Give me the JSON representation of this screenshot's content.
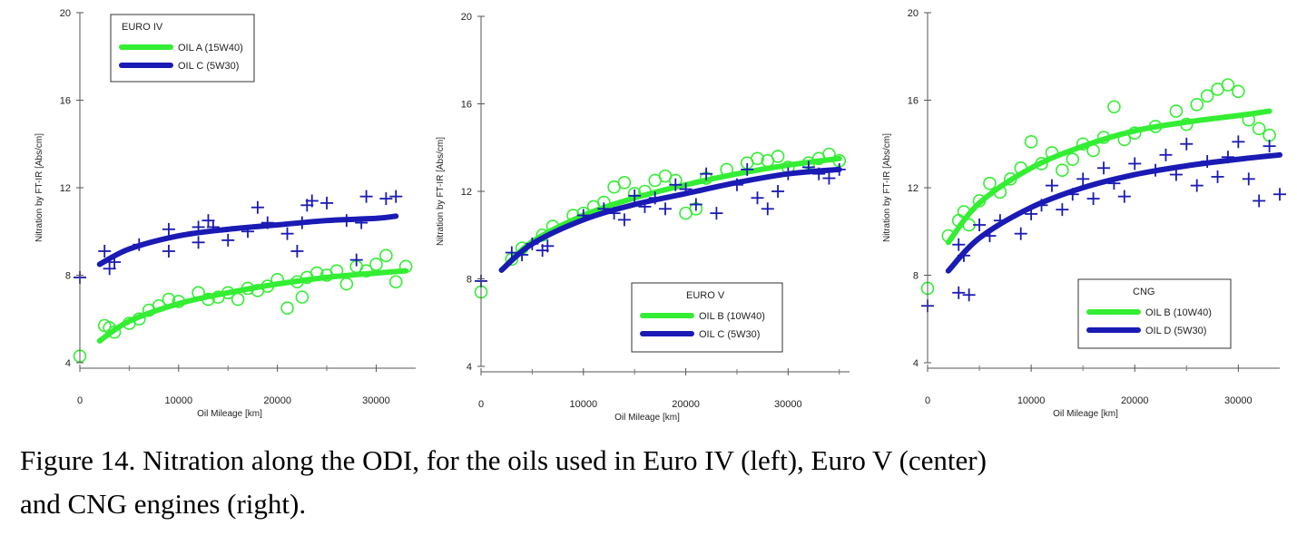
{
  "caption": {
    "line1": "Figure 14. Nitration along the ODI, for the oils used in Euro IV (left), Euro V (center)",
    "line2": "and CNG engines (right)."
  },
  "colors": {
    "green": "#33ee33",
    "blue": "#1a1ab4"
  },
  "chart_data": [
    {
      "type": "scatter",
      "legend_title": "EURO IV",
      "legend_position": "top-left",
      "xlabel": "Oil Mileage [km]",
      "ylabel": "Nitration by FT-IR [Abs/cm]",
      "xlim": [
        0,
        34000
      ],
      "ylim": [
        4,
        20
      ],
      "xticks": [
        0,
        10000,
        20000,
        30000
      ],
      "yticks": [
        4,
        8,
        12,
        16,
        20
      ],
      "series": [
        {
          "name": "OIL A (15W40)",
          "color": "#33ee33",
          "marker": "circle",
          "points": [
            [
              0,
              4.3
            ],
            [
              2500,
              5.7
            ],
            [
              3000,
              5.6
            ],
            [
              3500,
              5.4
            ],
            [
              5000,
              5.8
            ],
            [
              6000,
              6.0
            ],
            [
              7000,
              6.4
            ],
            [
              8000,
              6.6
            ],
            [
              9000,
              6.9
            ],
            [
              10000,
              6.8
            ],
            [
              12000,
              7.2
            ],
            [
              13000,
              6.9
            ],
            [
              14000,
              7.0
            ],
            [
              15000,
              7.2
            ],
            [
              16000,
              6.9
            ],
            [
              17000,
              7.4
            ],
            [
              18000,
              7.3
            ],
            [
              19000,
              7.5
            ],
            [
              20000,
              7.8
            ],
            [
              21000,
              6.5
            ],
            [
              22000,
              7.7
            ],
            [
              22500,
              7.0
            ],
            [
              23000,
              7.9
            ],
            [
              24000,
              8.1
            ],
            [
              25000,
              8.0
            ],
            [
              26000,
              8.2
            ],
            [
              27000,
              7.6
            ],
            [
              28000,
              8.4
            ],
            [
              29000,
              8.2
            ],
            [
              30000,
              8.5
            ],
            [
              31000,
              8.9
            ],
            [
              32000,
              7.7
            ],
            [
              33000,
              8.4
            ]
          ],
          "fit": [
            [
              2000,
              5.0
            ],
            [
              5000,
              5.9
            ],
            [
              10000,
              6.7
            ],
            [
              15000,
              7.2
            ],
            [
              20000,
              7.6
            ],
            [
              25000,
              7.9
            ],
            [
              30000,
              8.1
            ],
            [
              33000,
              8.2
            ]
          ]
        },
        {
          "name": "OIL C (5W30)",
          "color": "#1a1ab4",
          "marker": "plus",
          "points": [
            [
              0,
              7.9
            ],
            [
              2500,
              9.1
            ],
            [
              3000,
              8.3
            ],
            [
              3500,
              8.6
            ],
            [
              6000,
              9.4
            ],
            [
              9000,
              10.1
            ],
            [
              9000,
              9.1
            ],
            [
              12000,
              9.5
            ],
            [
              12000,
              10.2
            ],
            [
              13000,
              10.5
            ],
            [
              13500,
              10.2
            ],
            [
              15000,
              9.6
            ],
            [
              17000,
              10.0
            ],
            [
              18000,
              11.1
            ],
            [
              19000,
              10.4
            ],
            [
              21000,
              9.9
            ],
            [
              22000,
              9.1
            ],
            [
              22500,
              10.4
            ],
            [
              23000,
              11.2
            ],
            [
              23500,
              11.4
            ],
            [
              25000,
              11.3
            ],
            [
              27000,
              10.5
            ],
            [
              28000,
              8.7
            ],
            [
              28500,
              10.4
            ],
            [
              29000,
              11.6
            ],
            [
              31000,
              11.5
            ],
            [
              32000,
              11.6
            ]
          ],
          "fit": [
            [
              2000,
              8.5
            ],
            [
              5000,
              9.2
            ],
            [
              10000,
              9.8
            ],
            [
              15000,
              10.1
            ],
            [
              20000,
              10.3
            ],
            [
              25000,
              10.5
            ],
            [
              30000,
              10.6
            ],
            [
              32000,
              10.7
            ]
          ]
        }
      ]
    },
    {
      "type": "scatter",
      "legend_title": "EURO V",
      "legend_position": "bottom-right",
      "xlabel": "Oil Mileage [km]",
      "ylabel": "Nitration by FT-IR [Abs/cm]",
      "xlim": [
        0,
        36000
      ],
      "ylim": [
        4,
        20
      ],
      "xticks": [
        0,
        10000,
        20000,
        30000
      ],
      "yticks": [
        4,
        8,
        12,
        16,
        20
      ],
      "series": [
        {
          "name": "OIL B (10W40)",
          "color": "#33ee33",
          "marker": "circle",
          "points": [
            [
              0,
              7.4
            ],
            [
              3000,
              8.9
            ],
            [
              4000,
              9.4
            ],
            [
              6000,
              10.0
            ],
            [
              7000,
              10.4
            ],
            [
              9000,
              10.9
            ],
            [
              10000,
              11.0
            ],
            [
              11000,
              11.3
            ],
            [
              12000,
              11.5
            ],
            [
              13000,
              12.2
            ],
            [
              14000,
              12.4
            ],
            [
              15000,
              11.9
            ],
            [
              16000,
              12.0
            ],
            [
              17000,
              12.5
            ],
            [
              18000,
              12.7
            ],
            [
              19000,
              12.5
            ],
            [
              20000,
              11.0
            ],
            [
              21000,
              11.2
            ],
            [
              22000,
              12.6
            ],
            [
              24000,
              13.0
            ],
            [
              26000,
              13.3
            ],
            [
              27000,
              13.5
            ],
            [
              28000,
              13.4
            ],
            [
              29000,
              13.6
            ],
            [
              30000,
              13.1
            ],
            [
              32000,
              13.3
            ],
            [
              33000,
              13.5
            ],
            [
              34000,
              13.7
            ],
            [
              35000,
              13.4
            ]
          ],
          "fit": [
            [
              2000,
              8.4
            ],
            [
              5000,
              9.7
            ],
            [
              10000,
              10.9
            ],
            [
              15000,
              11.7
            ],
            [
              20000,
              12.3
            ],
            [
              25000,
              12.8
            ],
            [
              30000,
              13.2
            ],
            [
              35000,
              13.5
            ]
          ]
        },
        {
          "name": "OIL C (5W30)",
          "color": "#1a1ab4",
          "marker": "plus",
          "points": [
            [
              0,
              7.9
            ],
            [
              3000,
              9.2
            ],
            [
              4000,
              9.1
            ],
            [
              5000,
              9.6
            ],
            [
              6000,
              9.3
            ],
            [
              6500,
              9.5
            ],
            [
              10000,
              10.9
            ],
            [
              12000,
              11.2
            ],
            [
              13000,
              11.0
            ],
            [
              14000,
              10.7
            ],
            [
              15000,
              11.8
            ],
            [
              16000,
              11.3
            ],
            [
              17000,
              11.7
            ],
            [
              18000,
              11.2
            ],
            [
              19000,
              12.3
            ],
            [
              20000,
              12.1
            ],
            [
              21000,
              11.4
            ],
            [
              22000,
              12.8
            ],
            [
              23000,
              11.0
            ],
            [
              25000,
              12.3
            ],
            [
              26000,
              13.0
            ],
            [
              27000,
              11.7
            ],
            [
              28000,
              11.2
            ],
            [
              29000,
              12.0
            ],
            [
              30000,
              12.8
            ],
            [
              32000,
              13.1
            ],
            [
              33000,
              12.8
            ],
            [
              34000,
              12.6
            ],
            [
              35000,
              13.0
            ]
          ],
          "fit": [
            [
              2000,
              8.4
            ],
            [
              5000,
              9.6
            ],
            [
              10000,
              10.7
            ],
            [
              15000,
              11.4
            ],
            [
              20000,
              11.9
            ],
            [
              25000,
              12.4
            ],
            [
              30000,
              12.8
            ],
            [
              35000,
              13.0
            ]
          ]
        }
      ]
    },
    {
      "type": "scatter",
      "legend_title": "CNG",
      "legend_position": "bottom-right",
      "xlabel": "Oil Mileage [km]",
      "ylabel": "Nitration by FT-IR [Abs/cm]",
      "xlim": [
        0,
        34000
      ],
      "ylim": [
        4,
        20
      ],
      "xticks": [
        0,
        10000,
        20000,
        30000
      ],
      "yticks": [
        4,
        8,
        12,
        16,
        20
      ],
      "series": [
        {
          "name": "OIL B (10W40)",
          "color": "#33ee33",
          "marker": "circle",
          "points": [
            [
              0,
              7.4
            ],
            [
              2000,
              9.8
            ],
            [
              3000,
              10.5
            ],
            [
              3500,
              10.9
            ],
            [
              4000,
              10.3
            ],
            [
              5000,
              11.4
            ],
            [
              6000,
              12.2
            ],
            [
              7000,
              11.8
            ],
            [
              8000,
              12.4
            ],
            [
              9000,
              12.9
            ],
            [
              10000,
              14.1
            ],
            [
              11000,
              13.1
            ],
            [
              12000,
              13.6
            ],
            [
              13000,
              12.8
            ],
            [
              14000,
              13.3
            ],
            [
              15000,
              14.0
            ],
            [
              16000,
              13.7
            ],
            [
              17000,
              14.3
            ],
            [
              18000,
              15.7
            ],
            [
              19000,
              14.2
            ],
            [
              20000,
              14.5
            ],
            [
              22000,
              14.8
            ],
            [
              24000,
              15.5
            ],
            [
              25000,
              14.9
            ],
            [
              26000,
              15.8
            ],
            [
              27000,
              16.2
            ],
            [
              28000,
              16.5
            ],
            [
              29000,
              16.7
            ],
            [
              30000,
              16.4
            ],
            [
              31000,
              15.1
            ],
            [
              32000,
              14.7
            ],
            [
              33000,
              14.4
            ]
          ],
          "fit": [
            [
              2000,
              9.5
            ],
            [
              5000,
              11.3
            ],
            [
              10000,
              12.9
            ],
            [
              15000,
              13.9
            ],
            [
              20000,
              14.6
            ],
            [
              25000,
              15.0
            ],
            [
              30000,
              15.3
            ],
            [
              33000,
              15.5
            ]
          ]
        },
        {
          "name": "OIL D (5W30)",
          "color": "#1a1ab4",
          "marker": "plus",
          "points": [
            [
              0,
              6.6
            ],
            [
              3000,
              9.4
            ],
            [
              3000,
              7.2
            ],
            [
              3500,
              8.9
            ],
            [
              4000,
              7.1
            ],
            [
              5000,
              10.3
            ],
            [
              6000,
              9.8
            ],
            [
              7000,
              10.5
            ],
            [
              9000,
              9.9
            ],
            [
              10000,
              10.8
            ],
            [
              11000,
              11.2
            ],
            [
              12000,
              12.1
            ],
            [
              13000,
              11.0
            ],
            [
              14000,
              11.7
            ],
            [
              15000,
              12.4
            ],
            [
              16000,
              11.5
            ],
            [
              17000,
              12.9
            ],
            [
              18000,
              12.2
            ],
            [
              19000,
              11.6
            ],
            [
              20000,
              13.1
            ],
            [
              22000,
              12.8
            ],
            [
              23000,
              13.5
            ],
            [
              24000,
              12.6
            ],
            [
              25000,
              14.0
            ],
            [
              26000,
              12.1
            ],
            [
              27000,
              13.2
            ],
            [
              28000,
              12.5
            ],
            [
              29000,
              13.4
            ],
            [
              30000,
              14.1
            ],
            [
              31000,
              12.4
            ],
            [
              32000,
              11.4
            ],
            [
              33000,
              13.9
            ],
            [
              34000,
              11.7
            ]
          ],
          "fit": [
            [
              2000,
              8.2
            ],
            [
              5000,
              9.7
            ],
            [
              10000,
              11.1
            ],
            [
              15000,
              12.0
            ],
            [
              20000,
              12.6
            ],
            [
              25000,
              13.0
            ],
            [
              30000,
              13.3
            ],
            [
              34000,
              13.5
            ]
          ]
        }
      ]
    }
  ]
}
